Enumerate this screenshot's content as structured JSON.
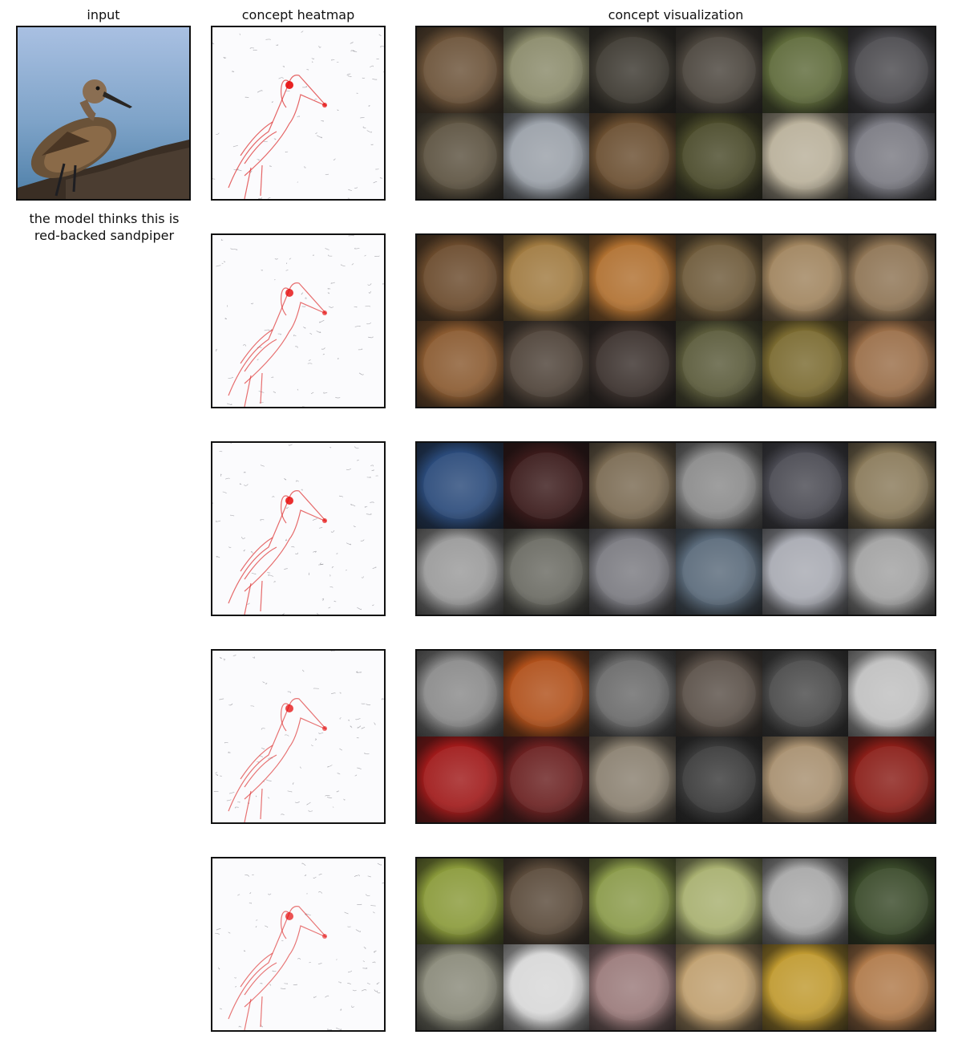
{
  "headers": {
    "input": "input",
    "heatmap": "concept heatmap",
    "visualization": "concept visualization"
  },
  "caption": {
    "line1": "the model thinks this is",
    "line2": "red-backed sandpiper"
  },
  "concepts": [
    {
      "id": 1,
      "hotspot_level": 0.9,
      "tile_colors": [
        "#6b5238",
        "#8a8a6a",
        "#3c3830",
        "#4a443c",
        "#5e6a3a",
        "#4b4a4e",
        "#5c5240",
        "#9aa0a8",
        "#6a4e30",
        "#4a4a2a",
        "#b9b09a",
        "#7a7a82"
      ]
    },
    {
      "id": 2,
      "hotspot_level": 0.8,
      "tile_colors": [
        "#6a4a2c",
        "#a07a40",
        "#b07030",
        "#6e5a3a",
        "#a0845e",
        "#8e7454",
        "#8a5a30",
        "#4e4238",
        "#3a302c",
        "#5a5a3a",
        "#7a6a30",
        "#9a6e48"
      ]
    },
    {
      "id": 3,
      "hotspot_level": 0.85,
      "tile_colors": [
        "#2a4a7a",
        "#3a1a1a",
        "#7a6a52",
        "#8a8a8a",
        "#4a4a52",
        "#8a7a5a",
        "#9a9a9a",
        "#6a6a62",
        "#7a7a80",
        "#5a6a7a",
        "#a8aab2",
        "#a2a2a2"
      ]
    },
    {
      "id": 4,
      "hotspot_level": 0.75,
      "tile_colors": [
        "#8a8a8a",
        "#b0501a",
        "#6a6a6a",
        "#5a5048",
        "#4a4a4a",
        "#c0c0c0",
        "#a01a1a",
        "#6a2020",
        "#8a8070",
        "#3a3a3a",
        "#a89070",
        "#8a1e18"
      ]
    },
    {
      "id": 5,
      "hotspot_level": 0.7,
      "tile_colors": [
        "#8a9a3a",
        "#5a4a3a",
        "#8a9a4a",
        "#a8b070",
        "#a8a8a8",
        "#3a4a2a",
        "#8a8a7a",
        "#d8d8d8",
        "#9a7a7a",
        "#c0a070",
        "#c09a30",
        "#b07a4a"
      ]
    }
  ]
}
